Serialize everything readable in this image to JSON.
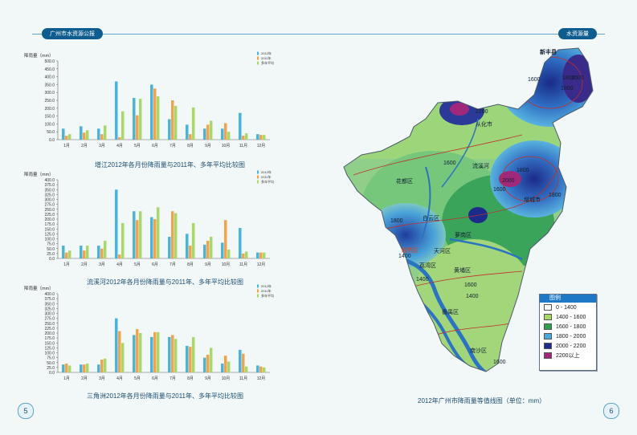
{
  "header": {
    "left_title": "广州市水资源公报",
    "right_title": "水资源量"
  },
  "pages": {
    "left": "5",
    "right": "6"
  },
  "legend_series": [
    "2012年",
    "2011年",
    "多年平均"
  ],
  "colors": {
    "y2012": "#46b3df",
    "y2011": "#f3a24a",
    "avg": "#a9d86a"
  },
  "chart_data": [
    {
      "type": "bar",
      "title": "增江2012年各月份降雨量与2011年、多年平均比较图",
      "ylabel": "降雨量（mm）",
      "ylim": [
        0,
        500
      ],
      "yticks": [
        "0.0",
        "50.0",
        "100.0",
        "150.0",
        "200.0",
        "250.0",
        "300.0",
        "350.0",
        "400.0",
        "450.0",
        "500.0"
      ],
      "categories": [
        "1月",
        "2月",
        "3月",
        "4月",
        "5月",
        "6月",
        "7月",
        "8月",
        "9月",
        "10月",
        "11月",
        "12月"
      ],
      "series": [
        {
          "name": "2012年",
          "values": [
            70,
            85,
            70,
            370,
            265,
            350,
            130,
            95,
            70,
            70,
            170,
            35
          ]
        },
        {
          "name": "2011年",
          "values": [
            25,
            45,
            35,
            15,
            155,
            325,
            250,
            35,
            95,
            105,
            25,
            30
          ]
        },
        {
          "name": "多年平均",
          "values": [
            35,
            60,
            90,
            180,
            260,
            275,
            215,
            205,
            120,
            50,
            40,
            30
          ]
        }
      ]
    },
    {
      "type": "bar",
      "title": "流溪河2012年各月份降雨量与2011年、多年平均比较图",
      "ylabel": "降雨量（mm）",
      "ylim": [
        0,
        400
      ],
      "yticks": [
        "0.0",
        "25.0",
        "50.0",
        "75.0",
        "100.0",
        "125.0",
        "150.0",
        "175.0",
        "200.0",
        "225.0",
        "250.0",
        "275.0",
        "300.0",
        "325.0",
        "350.0",
        "375.0",
        "400.0"
      ],
      "categories": [
        "1月",
        "2月",
        "3月",
        "4月",
        "5月",
        "6月",
        "7月",
        "8月",
        "9月",
        "10月",
        "11月",
        "12月"
      ],
      "series": [
        {
          "name": "2012年",
          "values": [
            65,
            65,
            65,
            350,
            240,
            210,
            110,
            125,
            70,
            80,
            155,
            30
          ]
        },
        {
          "name": "2011年",
          "values": [
            30,
            40,
            50,
            20,
            195,
            200,
            240,
            65,
            90,
            195,
            25,
            30
          ]
        },
        {
          "name": "多年平均",
          "values": [
            40,
            65,
            90,
            180,
            240,
            260,
            230,
            180,
            110,
            45,
            35,
            30
          ]
        }
      ]
    },
    {
      "type": "bar",
      "title": "三角洲2012年各月份降雨量与2011年、多年平均比较图",
      "ylabel": "降雨量（mm）",
      "ylim": [
        0,
        400
      ],
      "yticks": [
        "0.0",
        "25.0",
        "50.0",
        "75.0",
        "100.0",
        "125.0",
        "150.0",
        "175.0",
        "200.0",
        "225.0",
        "250.0",
        "275.0",
        "300.0",
        "325.0",
        "350.0",
        "375.0",
        "400.0"
      ],
      "categories": [
        "1月",
        "2月",
        "3月",
        "4月",
        "5月",
        "6月",
        "7月",
        "8月",
        "9月",
        "10月",
        "11月",
        "12月"
      ],
      "series": [
        {
          "name": "2012年",
          "values": [
            40,
            40,
            40,
            275,
            190,
            180,
            180,
            135,
            75,
            45,
            115,
            35
          ]
        },
        {
          "name": "2011年",
          "values": [
            45,
            40,
            65,
            210,
            220,
            205,
            190,
            130,
            90,
            85,
            95,
            30
          ]
        },
        {
          "name": "多年平均",
          "values": [
            35,
            45,
            70,
            150,
            200,
            205,
            170,
            180,
            125,
            55,
            30,
            25
          ]
        }
      ]
    }
  ],
  "map": {
    "caption": "2012年广州市降雨量等值线图（单位：mm）",
    "legend_title": "图例",
    "legend_items": [
      {
        "label": "0 - 1400",
        "color": "#ffffff"
      },
      {
        "label": "1400 - 1600",
        "color": "#a9d86a"
      },
      {
        "label": "1600 - 1800",
        "color": "#2f9e4d"
      },
      {
        "label": "1800 - 2000",
        "color": "#4aa8dc"
      },
      {
        "label": "2000 - 2200",
        "color": "#1c2a8a"
      },
      {
        "label": "2200以上",
        "color": "#a0287a"
      }
    ],
    "districts": [
      {
        "name": "从化市"
      },
      {
        "name": "花都区"
      },
      {
        "name": "白云区"
      },
      {
        "name": "萝岗区"
      },
      {
        "name": "增城市"
      },
      {
        "name": "天河区"
      },
      {
        "name": "荔湾区"
      },
      {
        "name": "黄埔区"
      },
      {
        "name": "番禺区"
      },
      {
        "name": "南沙区"
      },
      {
        "name": "越秀区"
      },
      {
        "name": "流溪河"
      },
      {
        "name": "新丰县"
      }
    ],
    "isolines": [
      "2200",
      "1800",
      "2000",
      "1800",
      "1600",
      "1600",
      "1800",
      "2000",
      "1600",
      "1800",
      "1800",
      "1400",
      "1400",
      "1600",
      "1400",
      "1600"
    ]
  }
}
